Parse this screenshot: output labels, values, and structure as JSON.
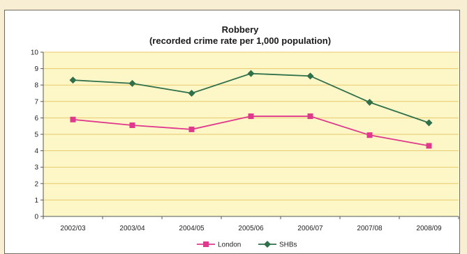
{
  "chart_data": {
    "type": "line",
    "title": "Robbery",
    "subtitle": "(recorded crime rate per 1,000 population)",
    "xlabel": "",
    "ylabel": "",
    "categories": [
      "2002/03",
      "2003/04",
      "2004/05",
      "2005/06",
      "2006/07",
      "2007/08",
      "2008/09"
    ],
    "ylim": [
      0,
      10
    ],
    "yticks": [
      0,
      1,
      2,
      3,
      4,
      5,
      6,
      7,
      8,
      9,
      10
    ],
    "grid": true,
    "legend_position": "bottom",
    "series": [
      {
        "name": "London",
        "values": [
          5.9,
          5.55,
          5.3,
          6.1,
          6.1,
          4.95,
          4.3
        ],
        "color": "#e0388c",
        "marker": "square"
      },
      {
        "name": "SHBs",
        "values": [
          8.3,
          8.1,
          7.5,
          8.7,
          8.55,
          6.95,
          5.7
        ],
        "color": "#2f6f4a",
        "marker": "diamond"
      }
    ],
    "colors": {
      "plot_background": "#fdf7c8",
      "gridline": "#e8c96a",
      "axis": "#555555"
    }
  }
}
